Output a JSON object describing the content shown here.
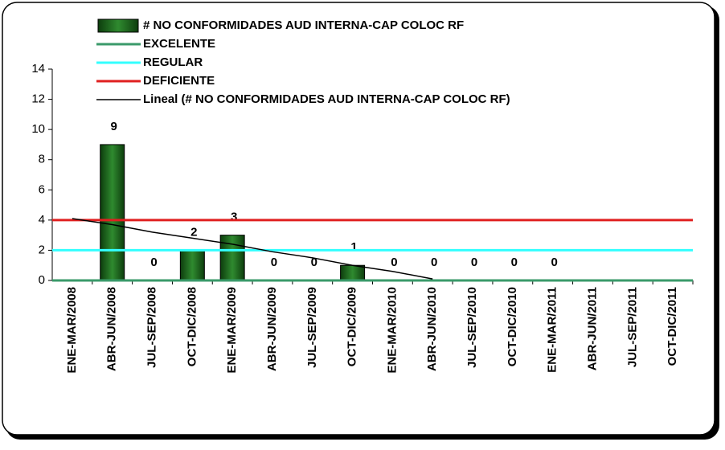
{
  "chart_data": {
    "type": "bar",
    "categories": [
      "ENE-MAR/2008",
      "ABR-JUN/2008",
      "JUL-SEP/2008",
      "OCT-DIC/2008",
      "ENE-MAR/2009",
      "ABR-JUN/2009",
      "JUL-SEP/2009",
      "OCT-DIC/2009",
      "ENE-MAR/2010",
      "ABR-JUN/2010",
      "JUL-SEP/2010",
      "OCT-DIC/2010",
      "ENE-MAR/2011",
      "ABR-JUN/2011",
      "JUL-SEP/2011",
      "OCT-DIC/2011"
    ],
    "series": [
      {
        "name": "# NO CONFORMIDADES AUD INTERNA-CAP COLOC RF",
        "type": "bar",
        "color": "#1f6b1f",
        "values": [
          null,
          9,
          0,
          2,
          3,
          0,
          0,
          1,
          0,
          0,
          0,
          0,
          0,
          null,
          null,
          null
        ]
      },
      {
        "name": "EXCELENTE",
        "type": "line",
        "color": "#3a9a6a",
        "values": [
          0,
          0,
          0,
          0,
          0,
          0,
          0,
          0,
          0,
          0,
          0,
          0,
          0,
          0,
          0,
          0
        ]
      },
      {
        "name": "REGULAR",
        "type": "line",
        "color": "#33ffff",
        "values": [
          2,
          2,
          2,
          2,
          2,
          2,
          2,
          2,
          2,
          2,
          2,
          2,
          2,
          2,
          2,
          2
        ]
      },
      {
        "name": "DEFICIENTE",
        "type": "line",
        "color": "#e02020",
        "values": [
          4,
          4,
          4,
          4,
          4,
          4,
          4,
          4,
          4,
          4,
          4,
          4,
          4,
          4,
          4,
          4
        ]
      },
      {
        "name": "Lineal (# NO CONFORMIDADES AUD INTERNA-CAP COLOC RF)",
        "type": "line",
        "color": "#000000",
        "values": [
          4.1,
          3.7,
          3.2,
          2.8,
          2.4,
          1.9,
          1.5,
          1.0,
          0.6,
          0.1,
          null,
          null,
          null,
          null,
          null,
          null
        ]
      }
    ],
    "ylim": [
      0,
      14
    ],
    "yticks": [
      0,
      2,
      4,
      6,
      8,
      10,
      12,
      14
    ],
    "grid": false
  }
}
